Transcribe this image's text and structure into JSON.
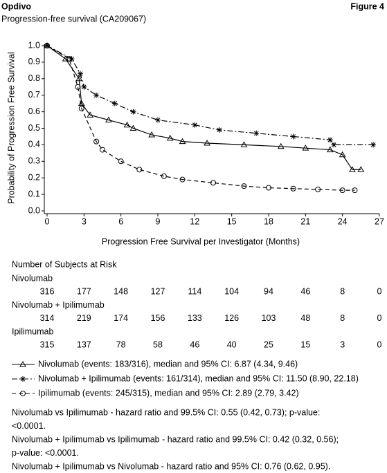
{
  "header": {
    "title": "Opdivo",
    "figure": "Figure 4",
    "subtitle": "Progression-free survival (CA209067)"
  },
  "chart_data": {
    "type": "line",
    "xlabel": "Progression Free Survival per Investigator (Months)",
    "ylabel": "Probability of Progression Free Survival",
    "xlim": [
      0,
      27
    ],
    "xticks": [
      0,
      3,
      6,
      9,
      12,
      15,
      18,
      21,
      24,
      27
    ],
    "ylim": [
      0,
      1
    ],
    "yticks": [
      {
        "value": 0,
        "label": "0.0"
      },
      0.1,
      0.2,
      0.3,
      0.4,
      0.5,
      0.6,
      0.7,
      0.8,
      0.9,
      {
        "value": 1,
        "label": "1.0"
      }
    ],
    "series": [
      {
        "name": "Nivolumab (events: 183/316), median and 95% CI: 6.87 (4.34, 9.46)",
        "color": "#000000",
        "dash": "none",
        "marker": "triangle",
        "x": [
          0,
          1.5,
          2.6,
          2.8,
          3.5,
          5,
          6.5,
          7,
          8.5,
          10,
          11,
          13,
          16,
          19,
          21,
          23,
          24,
          24.8,
          25.5
        ],
        "values": [
          1.0,
          0.92,
          0.8,
          0.65,
          0.58,
          0.55,
          0.52,
          0.5,
          0.46,
          0.44,
          0.42,
          0.41,
          0.4,
          0.39,
          0.38,
          0.37,
          0.34,
          0.25,
          0.25
        ]
      },
      {
        "name": "Nivolumab + Ipilimumab (events: 161/314), median and 95% CI: 11.50 (8.90, 22.18)",
        "color": "#000000",
        "dash": "8,3,2,3",
        "marker": "asterisk",
        "x": [
          0,
          2,
          2.7,
          3,
          4,
          5.5,
          7,
          9,
          12,
          14,
          17,
          20,
          23,
          23.3,
          26.5
        ],
        "values": [
          1.0,
          0.92,
          0.83,
          0.75,
          0.7,
          0.65,
          0.6,
          0.55,
          0.52,
          0.49,
          0.47,
          0.45,
          0.43,
          0.4,
          0.4
        ]
      },
      {
        "name": "Ipilimumab (events: 245/315), median and 95% CI: 2.89 (2.79, 3.42)",
        "color": "#000000",
        "dash": "6,4",
        "marker": "circle",
        "x": [
          0,
          1.8,
          2.5,
          2.8,
          4,
          4.5,
          6,
          7.5,
          9.5,
          11,
          13.5,
          16,
          18,
          20,
          22,
          24,
          25
        ],
        "values": [
          1.0,
          0.92,
          0.75,
          0.62,
          0.42,
          0.37,
          0.3,
          0.25,
          0.21,
          0.19,
          0.17,
          0.15,
          0.14,
          0.135,
          0.13,
          0.125,
          0.125
        ]
      }
    ]
  },
  "risk_table": {
    "title": "Number of Subjects at Risk",
    "times": [
      0,
      3,
      6,
      9,
      12,
      15,
      18,
      21,
      24,
      27
    ],
    "groups": [
      {
        "name": "Nivolumab",
        "counts": [
          316,
          177,
          148,
          127,
          114,
          104,
          94,
          46,
          8,
          0
        ]
      },
      {
        "name": "Nivolumab + Ipilimumab",
        "counts": [
          314,
          219,
          174,
          156,
          133,
          126,
          103,
          48,
          8,
          0
        ]
      },
      {
        "name": "Ipilimumab",
        "counts": [
          315,
          137,
          78,
          58,
          46,
          40,
          25,
          15,
          3,
          0
        ]
      }
    ]
  },
  "notes": [
    "Nivolumab vs Ipilimumab - hazard ratio and 99.5% CI: 0.55 (0.42, 0.73); p-value:",
    "<0.0001.",
    "Nivolumab + Ipilimumab vs Ipilimumab - hazard ratio and 99.5% CI: 0.42 (0.32, 0.56);",
    "p-value: <0.0001.",
    "Nivolumab + Ipilimumab vs Nivolumab - hazard ratio and 95% CI: 0.76 (0.62, 0.95)."
  ]
}
